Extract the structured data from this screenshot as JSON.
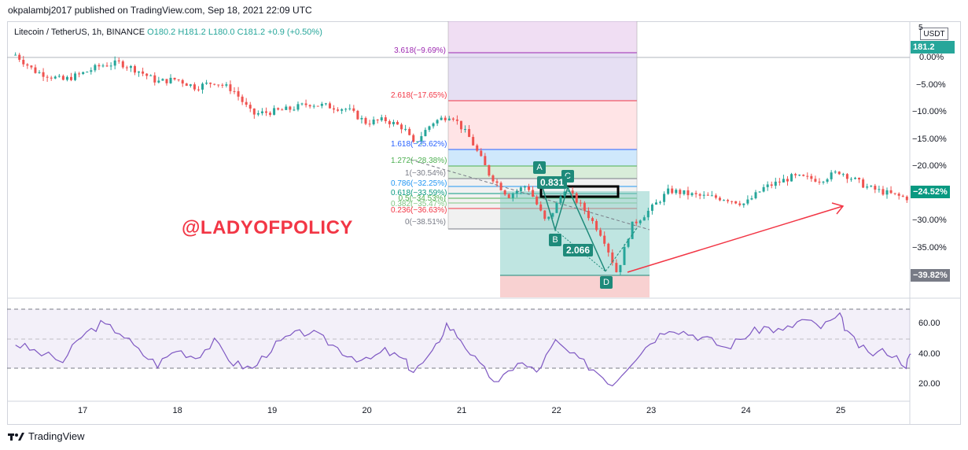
{
  "header": {
    "publish_line": "okpalambj2017 published on TradingView.com, Sep 18, 2021 22:09 UTC"
  },
  "symbol": {
    "name": "Litecoin / TetherUS, 1h, BINANCE",
    "open": "O180.2",
    "high": "H181.2",
    "low": "L180.0",
    "close": "C181.2",
    "change": "+0.9 (+0.50%)"
  },
  "price_axis": {
    "currency": "USDT",
    "current_price": "181.2",
    "ticks": [
      "0.00%",
      "−5.00%",
      "−10.00%",
      "−15.00%",
      "−20.00%",
      "−30.00%",
      "−35.00%"
    ],
    "top_tick": "5",
    "tags": [
      {
        "label": "−24.52%",
        "color": "#089981"
      },
      {
        "label": "−39.82%",
        "color": "#787b86"
      }
    ]
  },
  "fib_levels": [
    {
      "label": "3.618(−9.69%)",
      "color": "#9c27b0"
    },
    {
      "label": "2.618(−17.65%)",
      "color": "#f23645"
    },
    {
      "label": "1.618(−25.62%)",
      "color": "#2962ff"
    },
    {
      "label": "1.272(−28.38%)",
      "color": "#4caf50"
    },
    {
      "label": "1(−30.54%)",
      "color": "#787b86"
    },
    {
      "label": "0.786(−32.25%)",
      "color": "#2196f3"
    },
    {
      "label": "0.618(−33.59%)",
      "color": "#089981"
    },
    {
      "label": "0.5(−34.53%)",
      "color": "#4caf50"
    },
    {
      "label": "0.382(−35.47%)",
      "color": "#81c784"
    },
    {
      "label": "0.236(−36.63%)",
      "color": "#f23645"
    },
    {
      "label": "0(−38.51%)",
      "color": "#787b86"
    }
  ],
  "pattern": {
    "points": [
      "A",
      "B",
      "C",
      "D"
    ],
    "ratio_ac": "0.831",
    "ratio_bd": "2.066"
  },
  "watermark": "@LADYOFPOLICY",
  "rsi": {
    "ticks": [
      "60.00",
      "40.00",
      "20.00"
    ]
  },
  "time_axis": {
    "ticks": [
      "17",
      "18",
      "19",
      "20",
      "21",
      "22",
      "23",
      "24",
      "25"
    ]
  },
  "footer": {
    "brand": "TradingView"
  },
  "colors": {
    "up": "#26a69a",
    "down": "#ef5350",
    "rsi": "#7e57c2",
    "arrow": "#f23645"
  },
  "chart_data": {
    "type": "candlestick",
    "title": "Litecoin / TetherUS, 1h, BINANCE",
    "x_ticks": [
      "17",
      "18",
      "19",
      "20",
      "21",
      "22",
      "23",
      "24",
      "25"
    ],
    "y_unit": "% from reference",
    "ylim": [
      -42,
      5
    ],
    "close_path_pct": [
      [
        16.3,
        0.5
      ],
      [
        16.5,
        -2.5
      ],
      [
        16.8,
        -4.2
      ],
      [
        17.0,
        -3.0
      ],
      [
        17.2,
        -1.5
      ],
      [
        17.4,
        -1.0
      ],
      [
        17.6,
        -2.5
      ],
      [
        17.8,
        -4.5
      ],
      [
        18.0,
        -4.0
      ],
      [
        18.2,
        -5.5
      ],
      [
        18.4,
        -4.5
      ],
      [
        18.6,
        -6.0
      ],
      [
        18.8,
        -10.5
      ],
      [
        19.0,
        -10.0
      ],
      [
        19.2,
        -9.5
      ],
      [
        19.4,
        -8.5
      ],
      [
        19.6,
        -9.0
      ],
      [
        19.8,
        -9.5
      ],
      [
        20.0,
        -12.0
      ],
      [
        20.2,
        -11.5
      ],
      [
        20.4,
        -13.0
      ],
      [
        20.5,
        -16.0
      ],
      [
        20.7,
        -12.0
      ],
      [
        20.9,
        -10.5
      ],
      [
        21.1,
        -15.0
      ],
      [
        21.3,
        -21.5
      ],
      [
        21.5,
        -25.5
      ],
      [
        21.7,
        -23.5
      ],
      [
        21.9,
        -30.5
      ],
      [
        22.0,
        -27.5
      ],
      [
        22.1,
        -24.0
      ],
      [
        22.3,
        -28.0
      ],
      [
        22.5,
        -33.0
      ],
      [
        22.65,
        -39.8
      ],
      [
        22.8,
        -31.0
      ],
      [
        23.0,
        -28.0
      ],
      [
        23.2,
        -24.5
      ],
      [
        23.5,
        -25.5
      ],
      [
        23.8,
        -26.0
      ],
      [
        24.0,
        -27.0
      ],
      [
        24.2,
        -24.0
      ],
      [
        24.5,
        -22.0
      ],
      [
        24.8,
        -22.5
      ],
      [
        25.0,
        -21.0
      ],
      [
        25.3,
        -24.0
      ],
      [
        25.6,
        -25.5
      ],
      [
        25.75,
        -26.0
      ]
    ],
    "rsi_path": [
      [
        16.3,
        47
      ],
      [
        16.5,
        42
      ],
      [
        16.8,
        35
      ],
      [
        17.0,
        52
      ],
      [
        17.2,
        60
      ],
      [
        17.4,
        55
      ],
      [
        17.6,
        42
      ],
      [
        17.8,
        33
      ],
      [
        18.0,
        43
      ],
      [
        18.2,
        38
      ],
      [
        18.4,
        48
      ],
      [
        18.6,
        34
      ],
      [
        18.8,
        30
      ],
      [
        19.0,
        44
      ],
      [
        19.2,
        52
      ],
      [
        19.4,
        55
      ],
      [
        19.6,
        48
      ],
      [
        19.8,
        40
      ],
      [
        20.0,
        35
      ],
      [
        20.2,
        42
      ],
      [
        20.4,
        36
      ],
      [
        20.5,
        28
      ],
      [
        20.7,
        40
      ],
      [
        20.85,
        60
      ],
      [
        21.0,
        50
      ],
      [
        21.2,
        32
      ],
      [
        21.4,
        20
      ],
      [
        21.6,
        35
      ],
      [
        21.8,
        28
      ],
      [
        22.0,
        48
      ],
      [
        22.2,
        38
      ],
      [
        22.4,
        30
      ],
      [
        22.6,
        20
      ],
      [
        22.8,
        35
      ],
      [
        23.0,
        48
      ],
      [
        23.2,
        58
      ],
      [
        23.4,
        54
      ],
      [
        23.6,
        50
      ],
      [
        23.8,
        44
      ],
      [
        24.0,
        52
      ],
      [
        24.2,
        58
      ],
      [
        24.4,
        55
      ],
      [
        24.6,
        63
      ],
      [
        24.8,
        58
      ],
      [
        25.0,
        65
      ],
      [
        25.1,
        52
      ],
      [
        25.3,
        40
      ],
      [
        25.5,
        42
      ],
      [
        25.7,
        33
      ],
      [
        25.75,
        40
      ]
    ]
  }
}
